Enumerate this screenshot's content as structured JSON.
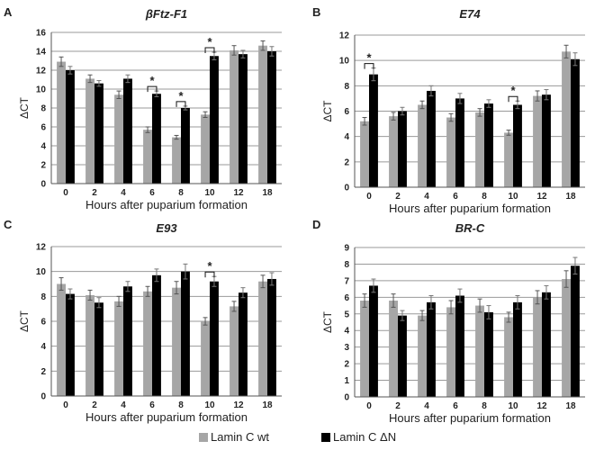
{
  "legend": [
    {
      "name": "Lamin C wt",
      "color": "#a6a6a6"
    },
    {
      "name": "Lamin C ΔN",
      "color": "#000000"
    }
  ],
  "chart_data": [
    {
      "type": "bar",
      "panel": "A",
      "title": "βFtz-F1",
      "xlabel": "Hours after puparium formation",
      "ylabel": "ΔCT",
      "ylim": [
        0,
        16
      ],
      "yticks": [
        0,
        2,
        4,
        6,
        8,
        10,
        12,
        14,
        16
      ],
      "grid": true,
      "categories": [
        "0",
        "2",
        "4",
        "6",
        "8",
        "10",
        "12",
        "18"
      ],
      "series": [
        {
          "name": "Lamin C wt",
          "values": [
            12.9,
            11.1,
            9.4,
            5.7,
            4.9,
            7.3,
            14.1,
            14.6
          ],
          "errors": [
            0.5,
            0.4,
            0.4,
            0.3,
            0.2,
            0.3,
            0.5,
            0.5
          ]
        },
        {
          "name": "Lamin C ΔN",
          "values": [
            12.0,
            10.6,
            11.1,
            9.5,
            8.0,
            13.5,
            13.7,
            14.0
          ],
          "errors": [
            0.4,
            0.3,
            0.4,
            0.3,
            0.2,
            0.4,
            0.4,
            0.5
          ]
        }
      ],
      "significance": [
        {
          "category": "6",
          "label": "*"
        },
        {
          "category": "8",
          "label": "*"
        },
        {
          "category": "10",
          "label": "*"
        }
      ]
    },
    {
      "type": "bar",
      "panel": "B",
      "title": "E74",
      "xlabel": "Hours after puparium formation",
      "ylabel": "ΔCT",
      "ylim": [
        0,
        12
      ],
      "yticks": [
        0,
        2,
        4,
        6,
        8,
        10,
        12
      ],
      "grid": true,
      "categories": [
        "0",
        "2",
        "4",
        "6",
        "8",
        "10",
        "12",
        "18"
      ],
      "series": [
        {
          "name": "Lamin C wt",
          "values": [
            5.2,
            5.6,
            6.5,
            5.5,
            5.9,
            4.3,
            7.2,
            10.7
          ],
          "errors": [
            0.3,
            0.3,
            0.3,
            0.3,
            0.3,
            0.2,
            0.4,
            0.5
          ]
        },
        {
          "name": "Lamin C ΔN",
          "values": [
            8.9,
            6.0,
            7.6,
            7.0,
            6.6,
            6.5,
            7.3,
            10.1
          ],
          "errors": [
            0.5,
            0.3,
            0.4,
            0.4,
            0.3,
            0.3,
            0.4,
            0.5
          ]
        }
      ],
      "significance": [
        {
          "category": "0",
          "label": "*"
        },
        {
          "category": "10",
          "label": "*"
        }
      ]
    },
    {
      "type": "bar",
      "panel": "C",
      "title": "E93",
      "xlabel": "Hours after puparium formation",
      "ylabel": "ΔCT",
      "ylim": [
        0,
        12
      ],
      "yticks": [
        0,
        2,
        4,
        6,
        8,
        10,
        12
      ],
      "grid": true,
      "categories": [
        "0",
        "2",
        "4",
        "6",
        "8",
        "10",
        "12",
        "18"
      ],
      "series": [
        {
          "name": "Lamin C wt",
          "values": [
            9.0,
            8.1,
            7.6,
            8.4,
            8.7,
            6.0,
            7.2,
            9.2
          ],
          "errors": [
            0.5,
            0.4,
            0.4,
            0.4,
            0.5,
            0.3,
            0.4,
            0.5
          ]
        },
        {
          "name": "Lamin C ΔN",
          "values": [
            8.2,
            7.5,
            8.8,
            9.7,
            10.0,
            9.2,
            8.3,
            9.4
          ],
          "errors": [
            0.4,
            0.4,
            0.4,
            0.5,
            0.6,
            0.4,
            0.4,
            0.5
          ]
        }
      ],
      "significance": [
        {
          "category": "10",
          "label": "*"
        }
      ]
    },
    {
      "type": "bar",
      "panel": "D",
      "title": "BR-C",
      "xlabel": "Hours after puparium formation",
      "ylabel": "ΔCT",
      "ylim": [
        0,
        9
      ],
      "yticks": [
        0,
        1,
        2,
        3,
        4,
        5,
        6,
        7,
        8,
        9
      ],
      "grid": true,
      "categories": [
        "0",
        "2",
        "4",
        "6",
        "8",
        "10",
        "12",
        "18"
      ],
      "series": [
        {
          "name": "Lamin C wt",
          "values": [
            5.8,
            5.8,
            4.9,
            5.4,
            5.5,
            4.8,
            6.0,
            7.1
          ],
          "errors": [
            0.4,
            0.4,
            0.3,
            0.4,
            0.4,
            0.3,
            0.4,
            0.5
          ]
        },
        {
          "name": "Lamin C ΔN",
          "values": [
            6.7,
            4.9,
            5.7,
            6.1,
            5.1,
            5.7,
            6.3,
            7.9
          ],
          "errors": [
            0.4,
            0.3,
            0.4,
            0.4,
            0.4,
            0.4,
            0.4,
            0.5
          ]
        }
      ],
      "significance": []
    }
  ]
}
